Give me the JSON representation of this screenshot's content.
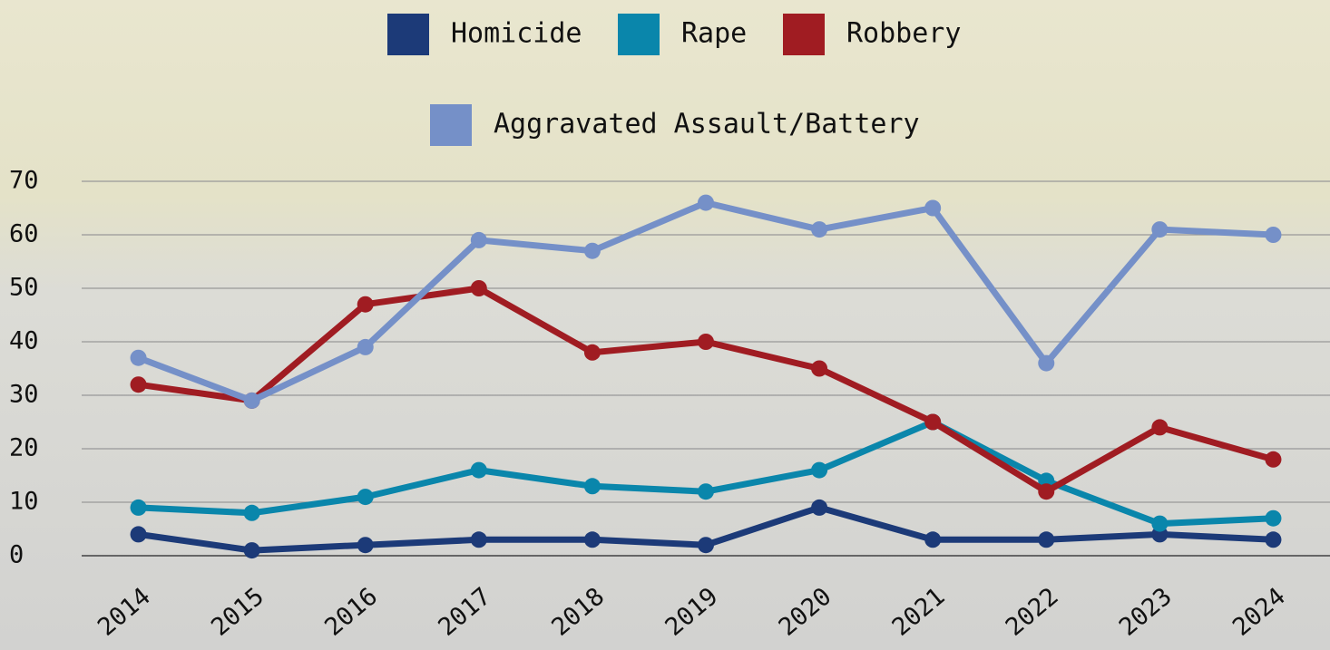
{
  "chart_data": {
    "type": "line",
    "categories": [
      "2014",
      "2015",
      "2016",
      "2017",
      "2018",
      "2019",
      "2020",
      "2021",
      "2022",
      "2023",
      "2024"
    ],
    "series": [
      {
        "name": "Homicide",
        "color": "#1c3a78",
        "values": [
          4,
          1,
          2,
          3,
          3,
          2,
          9,
          3,
          3,
          4,
          3
        ]
      },
      {
        "name": "Rape",
        "color": "#0a86ab",
        "values": [
          9,
          8,
          11,
          16,
          13,
          12,
          16,
          25,
          14,
          6,
          7
        ]
      },
      {
        "name": "Robbery",
        "color": "#a01c22",
        "values": [
          32,
          29,
          47,
          50,
          38,
          40,
          35,
          25,
          12,
          24,
          18
        ]
      },
      {
        "name": "Aggravated Assault/Battery",
        "color": "#7590c8",
        "values": [
          37,
          29,
          39,
          59,
          57,
          66,
          61,
          65,
          36,
          61,
          60
        ]
      }
    ],
    "ylim": [
      0,
      70
    ],
    "yticks": [
      0,
      10,
      20,
      30,
      40,
      50,
      60,
      70
    ],
    "grid": true,
    "legend": "top"
  }
}
